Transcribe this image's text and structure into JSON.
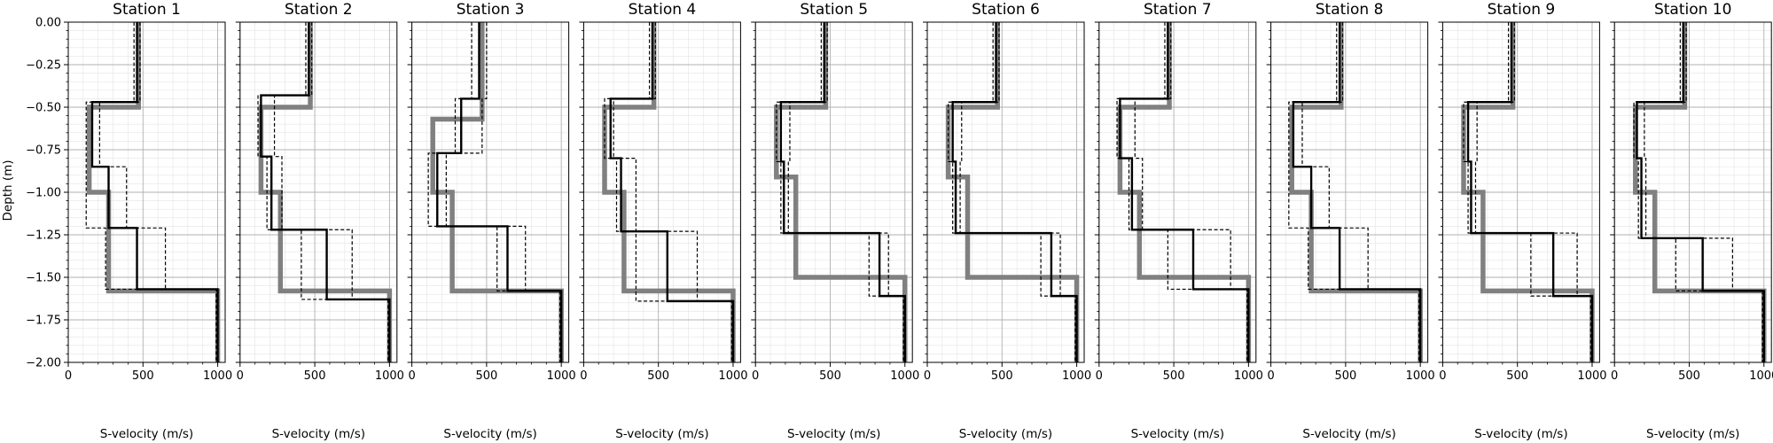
{
  "chart_data": {
    "type": "line",
    "ylabel": "Depth (m)",
    "xlabel": "S-velocity (m/s)",
    "xlim": [
      0,
      1050
    ],
    "ylim": [
      0.0,
      2.0
    ],
    "y_inverted": true,
    "xticks": [
      0,
      500,
      1000
    ],
    "yticks": [
      0.0,
      0.25,
      0.5,
      0.75,
      1.0,
      1.25,
      1.5,
      1.75,
      2.0
    ],
    "ytick_labels": [
      "0.00",
      "−0.25",
      "−0.50",
      "−0.75",
      "−1.00",
      "−1.25",
      "−1.50",
      "−1.75",
      "−2.00"
    ],
    "grid": "major and minor",
    "line_styles": {
      "reference": {
        "color": "#808080",
        "style": "solid",
        "weight": "thick"
      },
      "estimate": {
        "color": "#000000",
        "style": "solid",
        "weight": "medium"
      },
      "bounds": {
        "color": "#000000",
        "style": "dashed",
        "weight": "thin"
      }
    },
    "panels": [
      {
        "title": "Station 1",
        "reference": [
          [
            0.5,
            470
          ],
          [
            1.0,
            140
          ],
          [
            1.58,
            270
          ],
          [
            2.0,
            1000
          ]
        ],
        "estimate": [
          [
            0.47,
            460
          ],
          [
            0.85,
            160
          ],
          [
            1.21,
            270
          ],
          [
            1.57,
            460
          ],
          [
            2.0,
            1000
          ]
        ],
        "lower": [
          [
            0.47,
            440
          ],
          [
            1.21,
            120
          ],
          [
            1.57,
            250
          ],
          [
            2.0,
            990
          ]
        ],
        "upper": [
          [
            0.47,
            480
          ],
          [
            0.85,
            210
          ],
          [
            1.21,
            390
          ],
          [
            1.57,
            650
          ],
          [
            2.0,
            1000
          ]
        ]
      },
      {
        "title": "Station 2",
        "reference": [
          [
            0.5,
            470
          ],
          [
            1.0,
            140
          ],
          [
            1.58,
            270
          ],
          [
            2.0,
            1000
          ]
        ],
        "estimate": [
          [
            0.43,
            460
          ],
          [
            0.79,
            140
          ],
          [
            1.22,
            210
          ],
          [
            1.63,
            580
          ],
          [
            2.0,
            1000
          ]
        ],
        "lower": [
          [
            0.43,
            440
          ],
          [
            0.79,
            120
          ],
          [
            1.22,
            180
          ],
          [
            1.63,
            410
          ],
          [
            2.0,
            990
          ]
        ],
        "upper": [
          [
            0.43,
            480
          ],
          [
            0.79,
            230
          ],
          [
            1.22,
            280
          ],
          [
            1.63,
            750
          ],
          [
            2.0,
            1000
          ]
        ]
      },
      {
        "title": "Station 3",
        "reference": [
          [
            0.57,
            470
          ],
          [
            1.0,
            140
          ],
          [
            1.58,
            270
          ],
          [
            2.0,
            1000
          ]
        ],
        "estimate": [
          [
            0.45,
            450
          ],
          [
            0.77,
            330
          ],
          [
            1.2,
            170
          ],
          [
            1.58,
            640
          ],
          [
            2.0,
            1000
          ]
        ],
        "lower": [
          [
            0.45,
            400
          ],
          [
            0.77,
            290
          ],
          [
            1.2,
            110
          ],
          [
            1.58,
            570
          ],
          [
            2.0,
            990
          ]
        ],
        "upper": [
          [
            0.45,
            500
          ],
          [
            0.77,
            470
          ],
          [
            1.2,
            230
          ],
          [
            1.58,
            760
          ],
          [
            2.0,
            1000
          ]
        ]
      },
      {
        "title": "Station 4",
        "reference": [
          [
            0.5,
            470
          ],
          [
            1.0,
            140
          ],
          [
            1.58,
            270
          ],
          [
            2.0,
            1000
          ]
        ],
        "estimate": [
          [
            0.45,
            460
          ],
          [
            0.8,
            180
          ],
          [
            1.23,
            250
          ],
          [
            1.64,
            560
          ],
          [
            2.0,
            1000
          ]
        ],
        "lower": [
          [
            0.45,
            440
          ],
          [
            0.8,
            140
          ],
          [
            1.23,
            220
          ],
          [
            1.64,
            350
          ],
          [
            2.0,
            990
          ]
        ],
        "upper": [
          [
            0.45,
            480
          ],
          [
            0.8,
            200
          ],
          [
            1.23,
            350
          ],
          [
            1.64,
            760
          ],
          [
            2.0,
            1000
          ]
        ]
      },
      {
        "title": "Station 5",
        "reference": [
          [
            0.5,
            470
          ],
          [
            0.91,
            140
          ],
          [
            1.5,
            270
          ],
          [
            2.0,
            1000
          ]
        ],
        "estimate": [
          [
            0.47,
            460
          ],
          [
            0.82,
            170
          ],
          [
            1.24,
            190
          ],
          [
            1.61,
            830
          ],
          [
            2.0,
            1000
          ]
        ],
        "lower": [
          [
            0.47,
            440
          ],
          [
            0.82,
            140
          ],
          [
            1.24,
            170
          ],
          [
            1.61,
            760
          ],
          [
            2.0,
            990
          ]
        ],
        "upper": [
          [
            0.47,
            480
          ],
          [
            0.82,
            230
          ],
          [
            1.24,
            220
          ],
          [
            1.61,
            890
          ],
          [
            2.0,
            1000
          ]
        ]
      },
      {
        "title": "Station 6",
        "reference": [
          [
            0.5,
            470
          ],
          [
            0.91,
            140
          ],
          [
            1.5,
            270
          ],
          [
            2.0,
            1000
          ]
        ],
        "estimate": [
          [
            0.47,
            460
          ],
          [
            0.82,
            170
          ],
          [
            1.24,
            190
          ],
          [
            1.61,
            830
          ],
          [
            2.0,
            1000
          ]
        ],
        "lower": [
          [
            0.47,
            440
          ],
          [
            0.82,
            140
          ],
          [
            1.24,
            170
          ],
          [
            1.61,
            760
          ],
          [
            2.0,
            990
          ]
        ],
        "upper": [
          [
            0.47,
            480
          ],
          [
            0.82,
            230
          ],
          [
            1.24,
            220
          ],
          [
            1.61,
            890
          ],
          [
            2.0,
            1000
          ]
        ]
      },
      {
        "title": "Station 7",
        "reference": [
          [
            0.5,
            470
          ],
          [
            1.0,
            140
          ],
          [
            1.5,
            270
          ],
          [
            2.0,
            1000
          ]
        ],
        "estimate": [
          [
            0.45,
            460
          ],
          [
            0.8,
            140
          ],
          [
            1.22,
            220
          ],
          [
            1.57,
            630
          ],
          [
            2.0,
            1000
          ]
        ],
        "lower": [
          [
            0.45,
            440
          ],
          [
            0.8,
            120
          ],
          [
            1.22,
            200
          ],
          [
            1.57,
            460
          ],
          [
            2.0,
            990
          ]
        ],
        "upper": [
          [
            0.45,
            480
          ],
          [
            0.8,
            240
          ],
          [
            1.22,
            290
          ],
          [
            1.57,
            880
          ],
          [
            2.0,
            1000
          ]
        ]
      },
      {
        "title": "Station 8",
        "reference": [
          [
            0.5,
            470
          ],
          [
            1.0,
            140
          ],
          [
            1.58,
            270
          ],
          [
            2.0,
            1000
          ]
        ],
        "estimate": [
          [
            0.47,
            460
          ],
          [
            0.85,
            150
          ],
          [
            1.21,
            270
          ],
          [
            1.57,
            460
          ],
          [
            2.0,
            1000
          ]
        ],
        "lower": [
          [
            0.47,
            440
          ],
          [
            1.21,
            120
          ],
          [
            1.57,
            250
          ],
          [
            2.0,
            990
          ]
        ],
        "upper": [
          [
            0.47,
            480
          ],
          [
            0.85,
            210
          ],
          [
            1.21,
            390
          ],
          [
            1.57,
            650
          ],
          [
            2.0,
            1000
          ]
        ]
      },
      {
        "title": "Station 9",
        "reference": [
          [
            0.5,
            470
          ],
          [
            1.0,
            140
          ],
          [
            1.58,
            270
          ],
          [
            2.0,
            1000
          ]
        ],
        "estimate": [
          [
            0.47,
            460
          ],
          [
            0.82,
            170
          ],
          [
            1.24,
            190
          ],
          [
            1.61,
            740
          ],
          [
            2.0,
            1000
          ]
        ],
        "lower": [
          [
            0.47,
            440
          ],
          [
            0.82,
            140
          ],
          [
            1.24,
            170
          ],
          [
            1.61,
            590
          ],
          [
            2.0,
            990
          ]
        ],
        "upper": [
          [
            0.47,
            480
          ],
          [
            0.82,
            230
          ],
          [
            1.24,
            220
          ],
          [
            1.61,
            900
          ],
          [
            2.0,
            1000
          ]
        ]
      },
      {
        "title": "Station 10",
        "reference": [
          [
            0.5,
            470
          ],
          [
            1.0,
            140
          ],
          [
            1.58,
            270
          ],
          [
            2.0,
            1000
          ]
        ],
        "estimate": [
          [
            0.47,
            460
          ],
          [
            0.8,
            150
          ],
          [
            1.27,
            180
          ],
          [
            1.58,
            590
          ],
          [
            2.0,
            1000
          ]
        ],
        "lower": [
          [
            0.47,
            440
          ],
          [
            0.8,
            130
          ],
          [
            1.27,
            160
          ],
          [
            1.58,
            410
          ],
          [
            2.0,
            990
          ]
        ],
        "upper": [
          [
            0.47,
            480
          ],
          [
            0.8,
            200
          ],
          [
            1.27,
            210
          ],
          [
            1.58,
            790
          ],
          [
            2.0,
            1000
          ]
        ]
      }
    ]
  }
}
